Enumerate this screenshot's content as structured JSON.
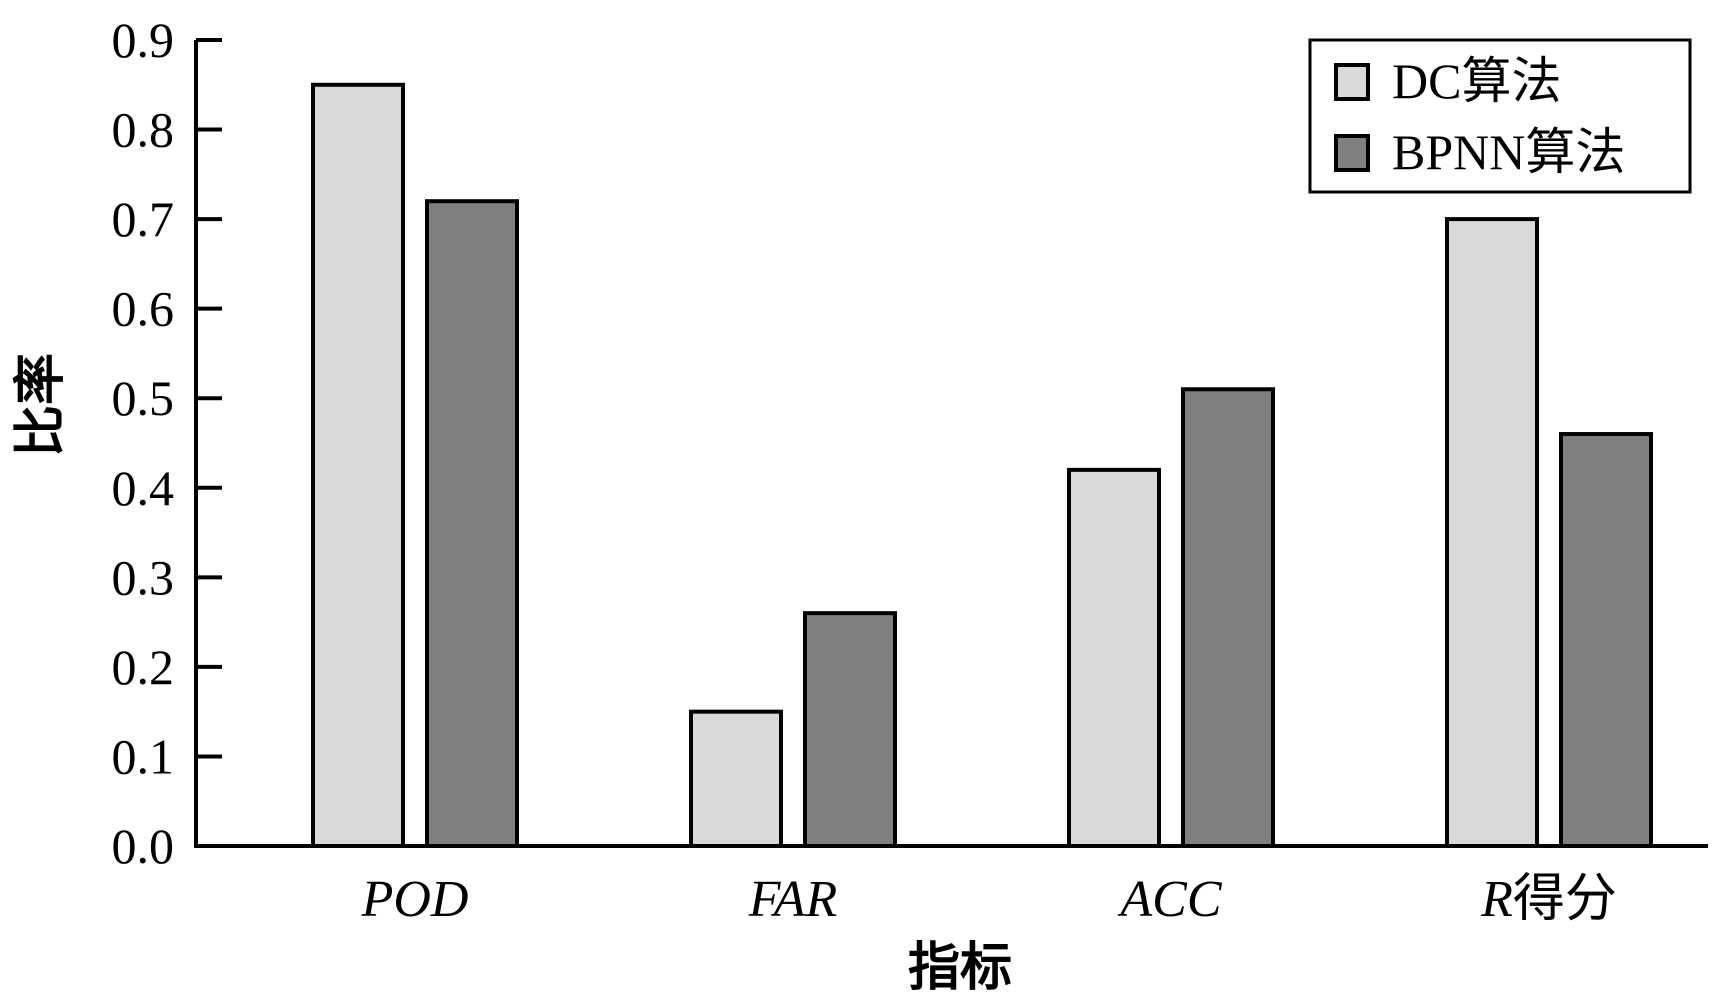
{
  "chart_data": {
    "type": "bar",
    "categories": [
      "POD",
      "FAR",
      "ACC",
      "R得分"
    ],
    "series": [
      {
        "name": "DC算法",
        "color": "#d9d9d9",
        "values": [
          0.85,
          0.15,
          0.42,
          0.7
        ]
      },
      {
        "name": "BPNN算法",
        "color": "#808080",
        "values": [
          0.72,
          0.26,
          0.51,
          0.46
        ]
      }
    ],
    "title": "",
    "xlabel": "指标",
    "ylabel": "比率",
    "ylim": [
      0,
      0.9
    ],
    "yticks": [
      "0.0",
      "0.1",
      "0.2",
      "0.3",
      "0.4",
      "0.5",
      "0.6",
      "0.7",
      "0.8",
      "0.9"
    ],
    "grid": false,
    "legend_position": "top-right"
  }
}
